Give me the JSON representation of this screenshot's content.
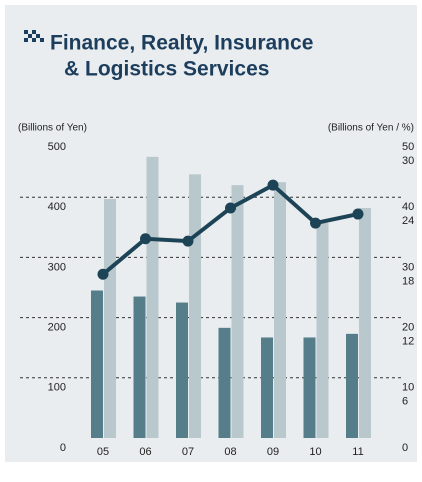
{
  "chart_data": {
    "type": "bar_line",
    "title": [
      "Finance, Realty, Insurance",
      "& Logistics Services"
    ],
    "y_label": "(Billions of Yen)",
    "y2_label": "(Billions of Yen / %)",
    "categories": [
      "05",
      "06",
      "07",
      "08",
      "09",
      "10",
      "11"
    ],
    "series": [
      {
        "type": "bar",
        "color": "#557d8a",
        "values": [
          245,
          235,
          225,
          183,
          167,
          167,
          173
        ]
      },
      {
        "type": "bar",
        "color": "#b9c8cd",
        "values": [
          397,
          467,
          438,
          420,
          425,
          357,
          382
        ]
      },
      {
        "type": "line",
        "axis": "y2",
        "color": "#1d4456",
        "values": [
          27.2,
          33.1,
          32.7,
          38.2,
          42.0,
          35.7,
          37.2
        ]
      }
    ],
    "ylim": [
      0,
      500
    ],
    "yticks": [
      0,
      100,
      200,
      300,
      400,
      500
    ],
    "y2lim": [
      0,
      50
    ],
    "y2ticks": [
      0,
      10,
      20,
      30,
      40,
      50
    ],
    "y3lim": [
      0,
      30
    ],
    "y3ticks": [
      6,
      12,
      18,
      24,
      30
    ],
    "grid": true
  }
}
